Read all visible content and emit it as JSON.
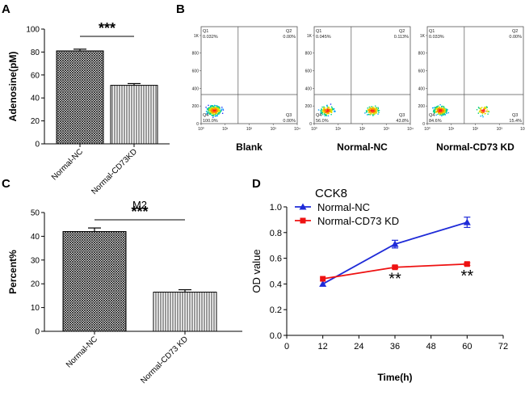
{
  "panels": {
    "A": "A",
    "B": "B",
    "C": "C",
    "D": "D"
  },
  "colors": {
    "bar_outline": "#000000",
    "nc_line": "#1f2bd8",
    "kd_line": "#ee1111"
  },
  "chart_data": [
    {
      "panel": "A",
      "type": "bar",
      "ylabel": "Adenosine(pM)",
      "ylim": [
        0,
        100
      ],
      "yticks": [
        "0",
        "20",
        "40",
        "60",
        "80",
        "100"
      ],
      "categories": [
        "Normal-NC",
        "Normal-CD73KD"
      ],
      "values": [
        81,
        51
      ],
      "errors": [
        1.5,
        1.5
      ],
      "patterns": [
        "crosshatch",
        "vertical"
      ],
      "significance": "***"
    },
    {
      "panel": "B",
      "type": "scatter",
      "subtitle": "flow cytometry density plots",
      "ytick_labels": [
        "0",
        "200",
        "400",
        "600",
        "800",
        "1K"
      ],
      "xtick_labels": [
        "10⁰",
        "10¹",
        "10²",
        "10³",
        "10⁴"
      ],
      "plots": [
        {
          "title": "Blank",
          "q1": "0.032%",
          "q2": "0.00%",
          "q3": "0.00%",
          "q4": "100.0%",
          "q1_label": "Q1",
          "q2_label": "Q2",
          "q3_label": "Q3",
          "q4_label": "Q4"
        },
        {
          "title": "Normal-NC",
          "q1": "0.045%",
          "q2": "0.113%",
          "q3": "43.8%",
          "q4": "56.0%",
          "q1_label": "Q1",
          "q2_label": "Q2",
          "q3_label": "Q3",
          "q4_label": "Q4"
        },
        {
          "title": "Normal-CD73 KD",
          "q1": "0.033%",
          "q2": "0.00%",
          "q3": "15.4%",
          "q4": "84.6%",
          "q1_label": "Q1",
          "q2_label": "Q2",
          "q3_label": "Q3",
          "q4_label": "Q4"
        }
      ]
    },
    {
      "panel": "C",
      "type": "bar",
      "title": "M2",
      "ylabel": "Percent%",
      "ylim": [
        0,
        50
      ],
      "yticks": [
        "0",
        "10",
        "20",
        "30",
        "40",
        "50"
      ],
      "categories": [
        "Normal-NC",
        "Normal-CD73 KD"
      ],
      "values": [
        42,
        16.5
      ],
      "errors": [
        1.5,
        1.0
      ],
      "patterns": [
        "crosshatch",
        "vertical"
      ],
      "significance": "***"
    },
    {
      "panel": "D",
      "type": "line",
      "title": "CCK8",
      "xlabel": "Time(h)",
      "ylabel": "OD value",
      "xlim": [
        0,
        72
      ],
      "ylim": [
        0,
        1.0
      ],
      "xticks": [
        "0",
        "12",
        "24",
        "36",
        "48",
        "60",
        "72"
      ],
      "yticks": [
        "0.0",
        "0.2",
        "0.4",
        "0.6",
        "0.8",
        "1.0"
      ],
      "x": [
        12,
        36,
        60
      ],
      "series": [
        {
          "name": "Normal-NC",
          "values": [
            0.4,
            0.71,
            0.88
          ],
          "errors": [
            0.0,
            0.03,
            0.04
          ]
        },
        {
          "name": "Normal-CD73 KD",
          "values": [
            0.44,
            0.53,
            0.555
          ],
          "errors": [
            0.0,
            0.01,
            0.01
          ]
        }
      ],
      "annotations": [
        "**",
        "**"
      ]
    }
  ]
}
